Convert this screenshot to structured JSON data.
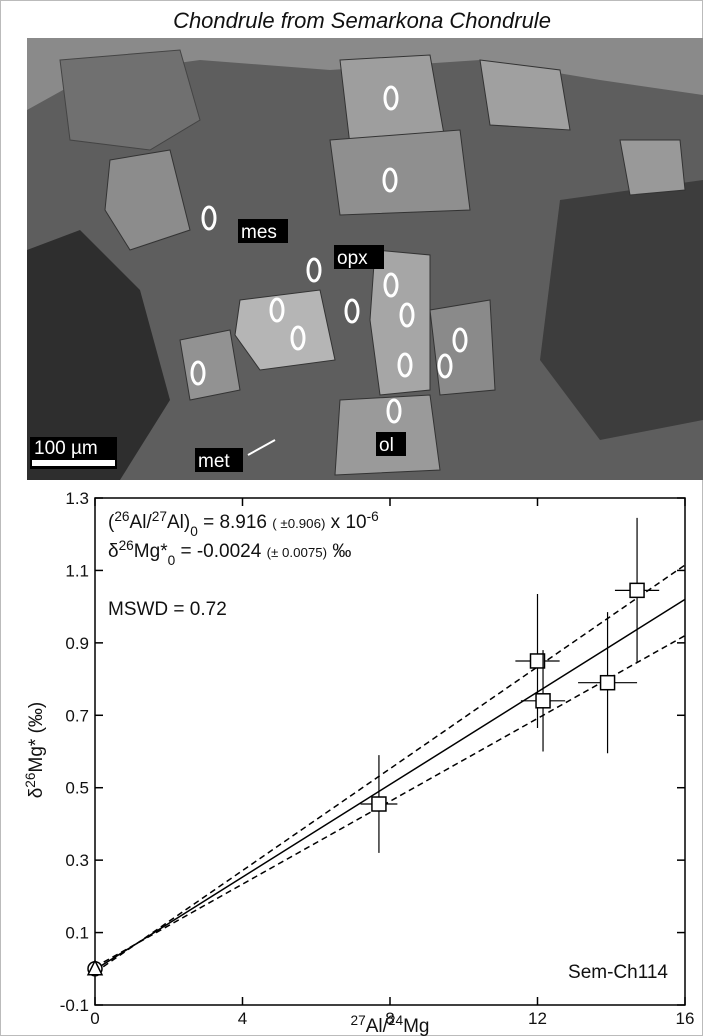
{
  "title": "Chondrule from Semarkona Chondrule",
  "micrograph": {
    "labels": [
      "mes",
      "opx",
      "ol",
      "met"
    ],
    "scale_bar": "100 µm"
  },
  "chart_data": {
    "type": "scatter",
    "x_label": [
      {
        "text": "27",
        "style": "sup"
      },
      {
        "text": "Al/",
        "style": "normal"
      },
      {
        "text": "24",
        "style": "sup"
      },
      {
        "text": "Mg",
        "style": "normal"
      }
    ],
    "y_label": [
      {
        "text": "δ",
        "style": "normal"
      },
      {
        "text": "26",
        "style": "sup"
      },
      {
        "text": "Mg* (‰)",
        "style": "normal"
      }
    ],
    "annotations": [
      [
        {
          "text": "(",
          "style": "normal"
        },
        {
          "text": "26",
          "style": "sup"
        },
        {
          "text": "Al/",
          "style": "normal"
        },
        {
          "text": "27",
          "style": "sup"
        },
        {
          "text": "Al)",
          "style": "normal"
        },
        {
          "text": "0",
          "style": "sub"
        },
        {
          "text": " = 8.916 ",
          "style": "normal"
        },
        {
          "text": "( ±0.906)",
          "style": "small"
        },
        {
          "text": " x 10",
          "style": "normal"
        },
        {
          "text": "-6",
          "style": "sup"
        }
      ],
      [
        {
          "text": "δ",
          "style": "normal"
        },
        {
          "text": "26",
          "style": "sup"
        },
        {
          "text": "Mg*",
          "style": "normal"
        },
        {
          "text": "0",
          "style": "sub"
        },
        {
          "text": " = -0.0024 ",
          "style": "normal"
        },
        {
          "text": "(± 0.0075)",
          "style": "small"
        },
        {
          "text": " ‰",
          "style": "normal"
        }
      ],
      [
        {
          "text": "MSWD = 0.72",
          "style": "normal"
        }
      ]
    ],
    "sample_label": "Sem-Ch114",
    "xlim": [
      0,
      16
    ],
    "ylim": [
      -0.1,
      1.3
    ],
    "xticks": [
      0,
      4,
      8,
      12,
      16
    ],
    "yticks": [
      -0.1,
      0.1,
      0.3,
      0.5,
      0.7,
      0.9,
      1.1,
      1.3
    ],
    "points": {
      "x": [
        7.7,
        12.0,
        12.15,
        13.9,
        14.7
      ],
      "values": [
        0.455,
        0.85,
        0.74,
        0.79,
        1.045
      ],
      "x_err": [
        0.5,
        0.6,
        0.6,
        0.8,
        0.6
      ],
      "y_err": [
        0.135,
        0.185,
        0.14,
        0.195,
        0.2
      ]
    },
    "origin_point": {
      "x": 0,
      "value": 0
    },
    "fit_lines": [
      {
        "x": [
          0,
          16
        ],
        "values": [
          -0.0024,
          1.02
        ],
        "dashed": false
      },
      {
        "x": [
          0,
          16
        ],
        "values": [
          -0.01,
          1.115
        ],
        "dashed": true
      },
      {
        "x": [
          0,
          16
        ],
        "values": [
          0.005,
          0.92
        ],
        "dashed": true
      }
    ]
  }
}
